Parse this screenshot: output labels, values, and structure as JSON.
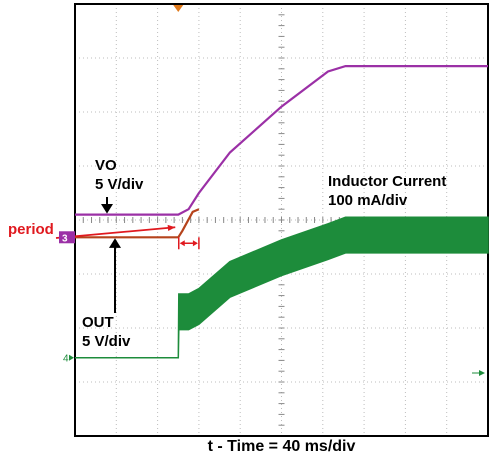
{
  "chart_data": {
    "type": "line",
    "xlabel": "t - Time = 40 ms/div",
    "grid": true,
    "annotations": {
      "vo": {
        "name": "VO",
        "scale": "5 V/div"
      },
      "out": {
        "name": "OUT",
        "scale": "5 V/div"
      },
      "inductor": {
        "name": "Inductor Current",
        "scale": "100 mA/div"
      },
      "period": "period"
    },
    "channel_markers": {
      "ch3": "3",
      "ch4": "4"
    },
    "x": {
      "divisions": 10,
      "range": [
        0,
        400
      ],
      "unit": "ms"
    },
    "y": {
      "divisions": 8
    },
    "series": [
      {
        "id": "vo",
        "color": "#9b30a6",
        "points": [
          [
            0,
            4.1
          ],
          [
            100,
            4.1
          ],
          [
            110,
            4.2
          ],
          [
            120,
            4.5
          ],
          [
            150,
            5.25
          ],
          [
            200,
            6.1
          ],
          [
            245,
            6.75
          ],
          [
            262,
            6.85
          ],
          [
            400,
            6.85
          ]
        ]
      },
      {
        "id": "out",
        "color": "#b5431c",
        "points": [
          [
            0,
            3.68
          ],
          [
            100,
            3.68
          ],
          [
            104,
            3.8
          ],
          [
            114,
            4.15
          ],
          [
            120,
            4.2
          ]
        ]
      },
      {
        "id": "inductor",
        "color": "#1d8c3b",
        "points": [
          [
            0,
            1.45
          ],
          [
            100,
            1.45
          ],
          [
            100.5,
            2.3
          ],
          [
            110,
            2.3
          ],
          [
            120,
            2.4
          ],
          [
            150,
            2.9
          ],
          [
            200,
            3.3
          ],
          [
            245,
            3.6
          ],
          [
            262,
            3.72
          ],
          [
            400,
            3.72
          ]
        ],
        "ripple_half_width_divs": 0.33
      }
    ]
  }
}
